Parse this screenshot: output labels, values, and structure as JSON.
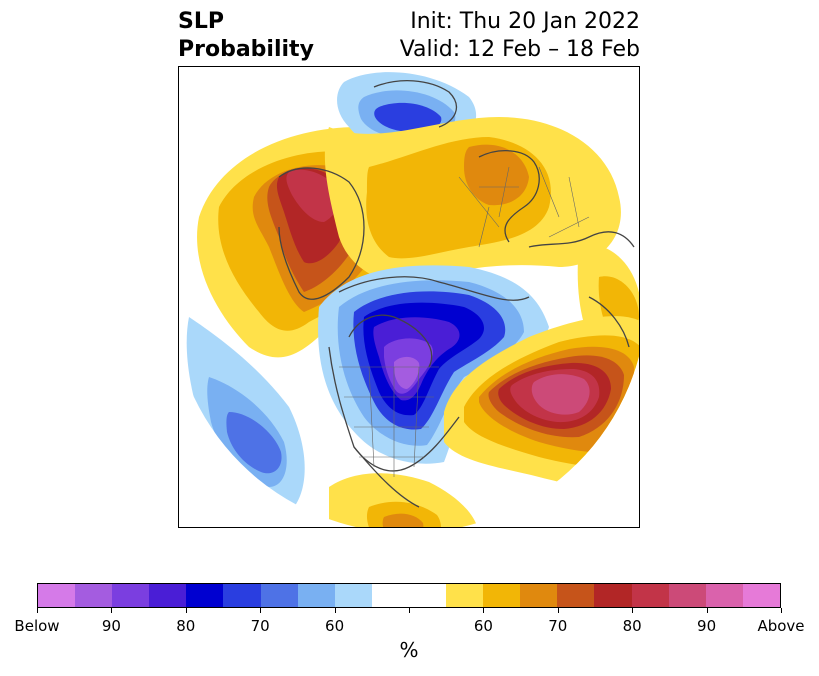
{
  "title": {
    "left_line1": "SLP",
    "left_line2": "Probability",
    "right_line1": "Init: Thu 20 Jan 2022",
    "right_line2": "Valid: 12 Feb – 18 Feb"
  },
  "colorbar": {
    "colors": [
      "#d57ae8",
      "#a45ce0",
      "#7b3ee0",
      "#4a1ed6",
      "#0000d0",
      "#2a3ee0",
      "#4e72e6",
      "#79b0f2",
      "#aad8fa",
      "#ffffff",
      "#ffffff",
      "#ffe14a",
      "#f2b606",
      "#e0890e",
      "#c6541a",
      "#b22626",
      "#c23448",
      "#cc4a78",
      "#da62ac",
      "#e67ad8"
    ],
    "tick_labels": [
      "Below",
      "90",
      "80",
      "70",
      "60",
      "",
      "60",
      "70",
      "80",
      "90",
      "Above"
    ],
    "unit": "%"
  },
  "palette": {
    "coast": "#444444"
  }
}
